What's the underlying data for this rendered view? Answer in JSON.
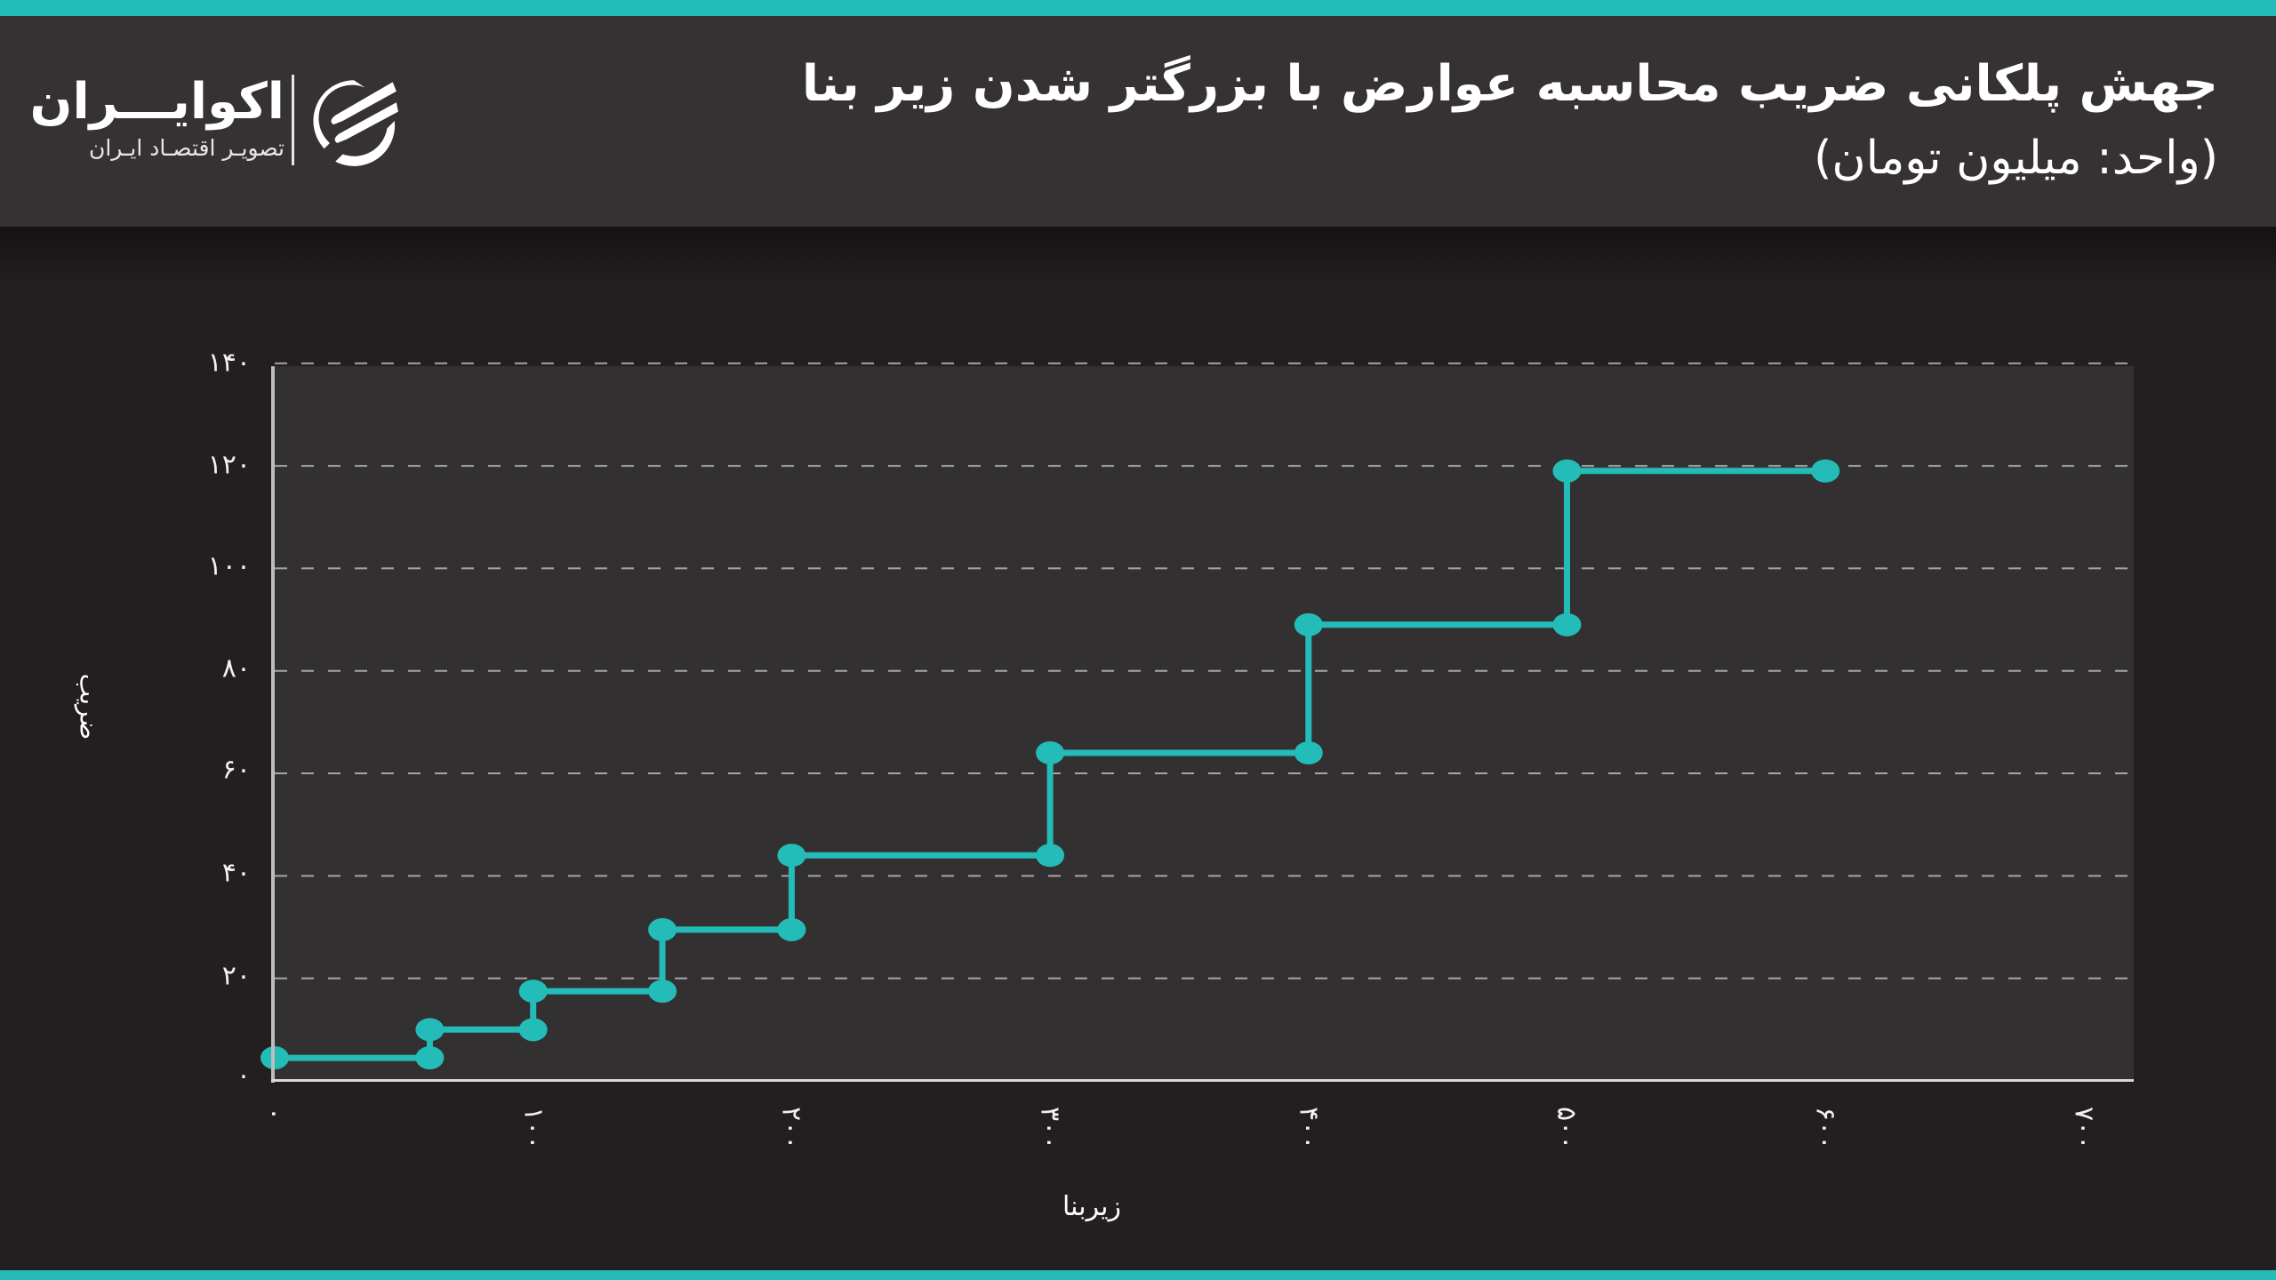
{
  "header": {
    "title": "جهش پلکانی ضریب محاسبه عوارض با بزرگتر شدن زیر بنا",
    "subtitle": "(واحد: میلیون تومان)"
  },
  "logo": {
    "name": "اکوایـــران",
    "tagline": "تصویـر اقتصـاد ایـران",
    "icon": "ecoiran-emblem-icon"
  },
  "colors": {
    "accent": "#24bcb8",
    "header_bg": "#363233",
    "page_bg": "#231f20",
    "plot_bg": "#333031",
    "grid": "#a6a6a6",
    "text": "#ffffff"
  },
  "axes": {
    "y_label": "ضریب",
    "x_label": "زیربنا",
    "y_ticks": [
      "۰",
      "۲۰",
      "۴۰",
      "۶۰",
      "۸۰",
      "۱۰۰",
      "۱۲۰",
      "۱۴۰"
    ],
    "x_ticks": [
      "۰",
      "۱۰۰",
      "۲۰۰",
      "۳۰۰",
      "۴۰۰",
      "۵۰۰",
      "۶۰۰",
      "۷۰۰"
    ]
  },
  "chart_data": {
    "type": "line",
    "subtype": "step",
    "title": "جهش پلکانی ضریب محاسبه عوارض با بزرگتر شدن زیر بنا",
    "subtitle": "(واحد: میلیون تومان)",
    "xlabel": "زیربنا",
    "ylabel": "ضریب",
    "xlim": [
      0,
      700
    ],
    "ylim": [
      0,
      140
    ],
    "x_ticks": [
      0,
      100,
      200,
      300,
      400,
      500,
      600,
      700
    ],
    "y_ticks": [
      0,
      20,
      40,
      60,
      80,
      100,
      120,
      140
    ],
    "grid": "horizontal dashed",
    "legend": "none",
    "series": [
      {
        "name": "ضریب",
        "color": "#24bcb8",
        "steps": [
          {
            "x_start": 0,
            "x_end": 60,
            "y": 4.5
          },
          {
            "x_start": 60,
            "x_end": 100,
            "y": 10
          },
          {
            "x_start": 100,
            "x_end": 150,
            "y": 17.5
          },
          {
            "x_start": 150,
            "x_end": 200,
            "y": 29.5
          },
          {
            "x_start": 200,
            "x_end": 300,
            "y": 44
          },
          {
            "x_start": 300,
            "x_end": 400,
            "y": 64
          },
          {
            "x_start": 400,
            "x_end": 500,
            "y": 89
          },
          {
            "x_start": 500,
            "x_end": 600,
            "y": 119
          }
        ],
        "points": [
          [
            0,
            4.5
          ],
          [
            60,
            4.5
          ],
          [
            60,
            10
          ],
          [
            100,
            10
          ],
          [
            100,
            17.5
          ],
          [
            150,
            17.5
          ],
          [
            150,
            29.5
          ],
          [
            200,
            29.5
          ],
          [
            200,
            44
          ],
          [
            300,
            44
          ],
          [
            300,
            64
          ],
          [
            400,
            64
          ],
          [
            400,
            89
          ],
          [
            500,
            89
          ],
          [
            500,
            119
          ],
          [
            600,
            119
          ]
        ]
      }
    ]
  }
}
